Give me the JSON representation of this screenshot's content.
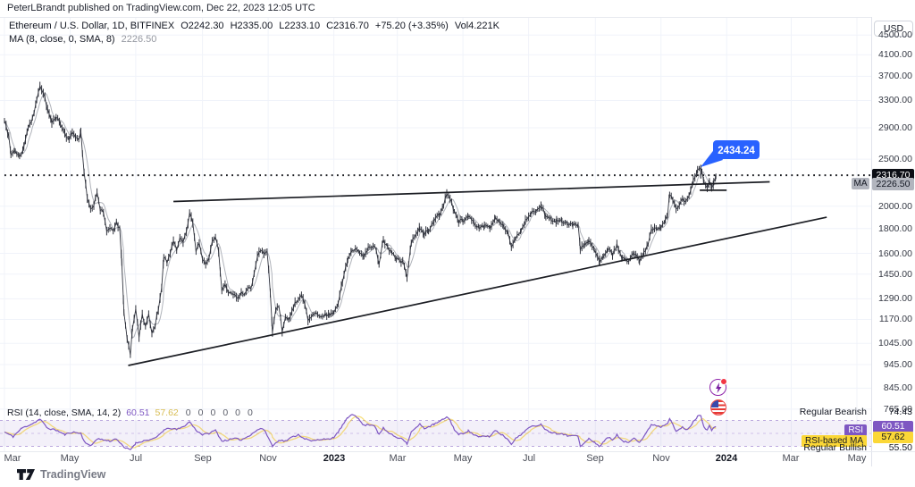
{
  "byline": "PeterLBrandt published on TradingView.com, Dec 22, 2023 12:05 UTC",
  "legend": {
    "symbol": "Ethereum / U.S. Dollar, 1D, BITFINEX",
    "ohlc": [
      "O2242.30",
      "H2335.00",
      "L2233.10",
      "C2316.70"
    ],
    "change": "+75.20 (+3.35%)",
    "volume": "Vol4.221K",
    "ma_label": "MA (8, close, 0, SMA, 8)",
    "ma_value": "2226.50"
  },
  "price_axis": {
    "currency": "USD",
    "last_price_label": "2316.70",
    "ma_tag": "MA",
    "ma_price_label": "2226.50"
  },
  "callout": {
    "text": "2434.24"
  },
  "rsi": {
    "legend": "RSI (14, close, SMA, 14, 2)",
    "value": "60.51",
    "ma_value": "57.62",
    "zeros": [
      "0",
      "0",
      "0",
      "0",
      "0",
      "0"
    ],
    "right_labels": {
      "regular_bearish_label": "Regular Bearish",
      "regular_bearish_value": "74.43",
      "rsi_label": "RSI",
      "rsi_value": "60.51",
      "rsi_ma_label": "RSI-based MA",
      "rsi_ma_value": "57.62",
      "regular_bullish_label": "Regular Bullish",
      "regular_bullish_value": "55.50"
    }
  },
  "footer": {
    "brand": "TradingView"
  },
  "colors": {
    "accent_blue": "#2962ff",
    "rsi_purple": "#7e57c2",
    "rsi_yellow": "#f0c419",
    "chip_black": "#0c0e15",
    "chip_gray": "#b2b5be",
    "candle": "#30333d",
    "trendline": "#1c1e24",
    "grid": "#f0f3fa",
    "up_red_dot": "#f23645"
  },
  "chart_data": {
    "type": "candlestick",
    "title": "Ethereum / U.S. Dollar, 1D, BITFINEX",
    "interval": "1D",
    "scale": "log",
    "current_price": 2316.7,
    "ma8_value": 2226.5,
    "callout_high": 2434.24,
    "price_ticks": [
      4500,
      4100,
      3700,
      3300,
      2900,
      2500,
      2000,
      1800,
      1600,
      1450,
      1290,
      1170,
      1045,
      945,
      845,
      765
    ],
    "time_labels": [
      {
        "text": "Mar",
        "d": 0
      },
      {
        "text": "May",
        "d": 61
      },
      {
        "text": "Jul",
        "d": 122
      },
      {
        "text": "Sep",
        "d": 184
      },
      {
        "text": "Nov",
        "d": 245
      },
      {
        "text": "2023",
        "d": 306
      },
      {
        "text": "Mar",
        "d": 365
      },
      {
        "text": "May",
        "d": 426
      },
      {
        "text": "Jul",
        "d": 487
      },
      {
        "text": "Sep",
        "d": 549
      },
      {
        "text": "Nov",
        "d": 610
      },
      {
        "text": "2024",
        "d": 671
      },
      {
        "text": "Mar",
        "d": 731
      },
      {
        "text": "May",
        "d": 792
      }
    ],
    "trendlines": [
      {
        "name": "upper",
        "from": [
          157,
          2045
        ],
        "to": [
          711,
          2245
        ]
      },
      {
        "name": "lower",
        "from": [
          115,
          941
        ],
        "to": [
          764,
          1899
        ]
      },
      {
        "name": "support_segment",
        "from": [
          646,
          2157
        ],
        "to": [
          671,
          2157
        ]
      }
    ],
    "dotted_level": 2316.7,
    "price_points": [
      [
        0,
        2975
      ],
      [
        4,
        2800
      ],
      [
        6,
        2550
      ],
      [
        10,
        2600
      ],
      [
        14,
        2520
      ],
      [
        18,
        2640
      ],
      [
        22,
        2900
      ],
      [
        26,
        3030
      ],
      [
        30,
        3290
      ],
      [
        33,
        3520
      ],
      [
        36,
        3430
      ],
      [
        40,
        3170
      ],
      [
        44,
        2990
      ],
      [
        48,
        3060
      ],
      [
        52,
        2940
      ],
      [
        56,
        2810
      ],
      [
        60,
        2740
      ],
      [
        63,
        2860
      ],
      [
        66,
        2780
      ],
      [
        69,
        2730
      ],
      [
        71,
        2830
      ],
      [
        74,
        2340
      ],
      [
        77,
        2080
      ],
      [
        80,
        1960
      ],
      [
        83,
        2020
      ],
      [
        86,
        2145
      ],
      [
        89,
        1975
      ],
      [
        92,
        1940
      ],
      [
        95,
        1790
      ],
      [
        98,
        1815
      ],
      [
        101,
        1790
      ],
      [
        104,
        1860
      ],
      [
        107,
        1790
      ],
      [
        109,
        1530
      ],
      [
        111,
        1210
      ],
      [
        114,
        1075
      ],
      [
        117,
        995
      ],
      [
        119,
        1125
      ],
      [
        122,
        1230
      ],
      [
        125,
        1070
      ],
      [
        128,
        1190
      ],
      [
        131,
        1140
      ],
      [
        134,
        1192
      ],
      [
        137,
        1097
      ],
      [
        140,
        1142
      ],
      [
        143,
        1232
      ],
      [
        146,
        1365
      ],
      [
        148,
        1575
      ],
      [
        151,
        1540
      ],
      [
        154,
        1600
      ],
      [
        157,
        1692
      ],
      [
        160,
        1632
      ],
      [
        163,
        1728
      ],
      [
        166,
        1700
      ],
      [
        169,
        1780
      ],
      [
        172,
        1935
      ],
      [
        175,
        1850
      ],
      [
        178,
        1622
      ],
      [
        181,
        1680
      ],
      [
        184,
        1555
      ],
      [
        187,
        1512
      ],
      [
        190,
        1562
      ],
      [
        193,
        1680
      ],
      [
        196,
        1715
      ],
      [
        199,
        1622
      ],
      [
        202,
        1332
      ],
      [
        205,
        1380
      ],
      [
        208,
        1332
      ],
      [
        211,
        1322
      ],
      [
        214,
        1322
      ],
      [
        217,
        1292
      ],
      [
        220,
        1332
      ],
      [
        223,
        1312
      ],
      [
        226,
        1362
      ],
      [
        229,
        1347
      ],
      [
        232,
        1462
      ],
      [
        235,
        1577
      ],
      [
        238,
        1632
      ],
      [
        241,
        1592
      ],
      [
        244,
        1622
      ],
      [
        247,
        1337
      ],
      [
        249,
        1100
      ],
      [
        252,
        1222
      ],
      [
        255,
        1252
      ],
      [
        258,
        1112
      ],
      [
        261,
        1182
      ],
      [
        264,
        1172
      ],
      [
        267,
        1217
      ],
      [
        270,
        1262
      ],
      [
        273,
        1282
      ],
      [
        276,
        1322
      ],
      [
        279,
        1252
      ],
      [
        282,
        1167
      ],
      [
        285,
        1192
      ],
      [
        288,
        1197
      ],
      [
        291,
        1202
      ],
      [
        294,
        1190
      ],
      [
        298,
        1200
      ],
      [
        302,
        1195
      ],
      [
        306,
        1214
      ],
      [
        310,
        1262
      ],
      [
        314,
        1400
      ],
      [
        319,
        1552
      ],
      [
        323,
        1632
      ],
      [
        326,
        1628
      ],
      [
        330,
        1602
      ],
      [
        334,
        1585
      ],
      [
        338,
        1642
      ],
      [
        344,
        1665
      ],
      [
        348,
        1531
      ],
      [
        352,
        1700
      ],
      [
        356,
        1642
      ],
      [
        360,
        1606
      ],
      [
        364,
        1562
      ],
      [
        370,
        1535
      ],
      [
        374,
        1430
      ],
      [
        378,
        1680
      ],
      [
        386,
        1805
      ],
      [
        390,
        1752
      ],
      [
        394,
        1782
      ],
      [
        399,
        1868
      ],
      [
        404,
        1922
      ],
      [
        408,
        2002
      ],
      [
        411,
        2120
      ],
      [
        414,
        2080
      ],
      [
        418,
        1942
      ],
      [
        422,
        1858
      ],
      [
        426,
        1870
      ],
      [
        431,
        1912
      ],
      [
        436,
        1848
      ],
      [
        441,
        1802
      ],
      [
        446,
        1822
      ],
      [
        451,
        1808
      ],
      [
        456,
        1902
      ],
      [
        460,
        1862
      ],
      [
        464,
        1812
      ],
      [
        468,
        1752
      ],
      [
        471,
        1652
      ],
      [
        475,
        1722
      ],
      [
        480,
        1782
      ],
      [
        484,
        1862
      ],
      [
        489,
        1932
      ],
      [
        494,
        1962
      ],
      [
        499,
        2005
      ],
      [
        503,
        1902
      ],
      [
        508,
        1882
      ],
      [
        513,
        1862
      ],
      [
        518,
        1862
      ],
      [
        523,
        1832
      ],
      [
        528,
        1840
      ],
      [
        533,
        1828
      ],
      [
        535,
        1630
      ],
      [
        539,
        1667
      ],
      [
        543,
        1707
      ],
      [
        548,
        1632
      ],
      [
        553,
        1542
      ],
      [
        557,
        1592
      ],
      [
        561,
        1637
      ],
      [
        565,
        1592
      ],
      [
        569,
        1662
      ],
      [
        574,
        1562
      ],
      [
        580,
        1542
      ],
      [
        585,
        1602
      ],
      [
        590,
        1540
      ],
      [
        594,
        1600
      ],
      [
        598,
        1680
      ],
      [
        601,
        1790
      ],
      [
        606,
        1802
      ],
      [
        610,
        1812
      ],
      [
        614,
        1872
      ],
      [
        616,
        1902
      ],
      [
        618,
        2120
      ],
      [
        621,
        2052
      ],
      [
        624,
        1972
      ],
      [
        627,
        2022
      ],
      [
        630,
        2082
      ],
      [
        633,
        2032
      ],
      [
        636,
        2092
      ],
      [
        640,
        2252
      ],
      [
        644,
        2355
      ],
      [
        647,
        2390
      ],
      [
        648,
        2355
      ],
      [
        650,
        2225
      ],
      [
        653,
        2190
      ],
      [
        655,
        2250
      ],
      [
        657,
        2200
      ],
      [
        659,
        2240
      ],
      [
        661,
        2316.7
      ]
    ],
    "rsi_pane": {
      "upper_band": 70,
      "middle": 50,
      "lower_band": 30,
      "current": 60.51,
      "ma": 57.62,
      "regular_bearish_level": 74.43,
      "regular_bullish_level": 55.5,
      "rsi_points": [
        [
          0,
          52
        ],
        [
          8,
          45
        ],
        [
          16,
          58
        ],
        [
          26,
          65
        ],
        [
          33,
          72
        ],
        [
          40,
          58
        ],
        [
          48,
          55
        ],
        [
          56,
          48
        ],
        [
          63,
          52
        ],
        [
          71,
          50
        ],
        [
          74,
          38
        ],
        [
          80,
          30
        ],
        [
          86,
          42
        ],
        [
          92,
          40
        ],
        [
          98,
          38
        ],
        [
          104,
          42
        ],
        [
          111,
          28
        ],
        [
          117,
          25
        ],
        [
          122,
          35
        ],
        [
          128,
          38
        ],
        [
          134,
          40
        ],
        [
          140,
          42
        ],
        [
          148,
          55
        ],
        [
          154,
          58
        ],
        [
          160,
          56
        ],
        [
          166,
          60
        ],
        [
          172,
          68
        ],
        [
          178,
          55
        ],
        [
          184,
          48
        ],
        [
          190,
          50
        ],
        [
          196,
          55
        ],
        [
          202,
          38
        ],
        [
          208,
          40
        ],
        [
          214,
          42
        ],
        [
          220,
          40
        ],
        [
          226,
          45
        ],
        [
          232,
          52
        ],
        [
          238,
          58
        ],
        [
          241,
          56
        ],
        [
          247,
          38
        ],
        [
          249,
          30
        ],
        [
          255,
          40
        ],
        [
          261,
          38
        ],
        [
          267,
          44
        ],
        [
          273,
          48
        ],
        [
          279,
          42
        ],
        [
          285,
          38
        ],
        [
          291,
          40
        ],
        [
          298,
          42
        ],
        [
          302,
          40
        ],
        [
          306,
          44
        ],
        [
          310,
          52
        ],
        [
          314,
          62
        ],
        [
          319,
          74
        ],
        [
          323,
          80
        ],
        [
          326,
          78
        ],
        [
          330,
          70
        ],
        [
          334,
          62
        ],
        [
          338,
          64
        ],
        [
          344,
          62
        ],
        [
          348,
          48
        ],
        [
          352,
          58
        ],
        [
          356,
          52
        ],
        [
          360,
          48
        ],
        [
          364,
          44
        ],
        [
          370,
          42
        ],
        [
          374,
          34
        ],
        [
          378,
          52
        ],
        [
          386,
          64
        ],
        [
          390,
          58
        ],
        [
          394,
          60
        ],
        [
          399,
          64
        ],
        [
          404,
          68
        ],
        [
          408,
          72
        ],
        [
          411,
          76
        ],
        [
          414,
          70
        ],
        [
          418,
          56
        ],
        [
          422,
          48
        ],
        [
          426,
          50
        ],
        [
          431,
          54
        ],
        [
          436,
          48
        ],
        [
          441,
          44
        ],
        [
          446,
          46
        ],
        [
          451,
          45
        ],
        [
          456,
          55
        ],
        [
          460,
          50
        ],
        [
          464,
          46
        ],
        [
          468,
          40
        ],
        [
          471,
          34
        ],
        [
          475,
          42
        ],
        [
          480,
          48
        ],
        [
          484,
          55
        ],
        [
          489,
          60
        ],
        [
          494,
          62
        ],
        [
          499,
          64
        ],
        [
          503,
          55
        ],
        [
          508,
          52
        ],
        [
          513,
          50
        ],
        [
          518,
          50
        ],
        [
          523,
          46
        ],
        [
          528,
          48
        ],
        [
          533,
          45
        ],
        [
          535,
          30
        ],
        [
          539,
          35
        ],
        [
          543,
          42
        ],
        [
          548,
          36
        ],
        [
          553,
          30
        ],
        [
          557,
          38
        ],
        [
          561,
          44
        ],
        [
          565,
          40
        ],
        [
          569,
          48
        ],
        [
          574,
          38
        ],
        [
          580,
          36
        ],
        [
          585,
          44
        ],
        [
          590,
          36
        ],
        [
          594,
          45
        ],
        [
          598,
          55
        ],
        [
          601,
          64
        ],
        [
          606,
          62
        ],
        [
          610,
          60
        ],
        [
          614,
          64
        ],
        [
          616,
          66
        ],
        [
          618,
          74
        ],
        [
          621,
          64
        ],
        [
          624,
          52
        ],
        [
          627,
          56
        ],
        [
          630,
          60
        ],
        [
          633,
          55
        ],
        [
          636,
          58
        ],
        [
          640,
          68
        ],
        [
          644,
          76
        ],
        [
          647,
          78
        ],
        [
          648,
          72
        ],
        [
          650,
          60
        ],
        [
          653,
          55
        ],
        [
          655,
          62
        ],
        [
          657,
          55
        ],
        [
          659,
          58
        ],
        [
          661,
          60.51
        ]
      ]
    }
  }
}
